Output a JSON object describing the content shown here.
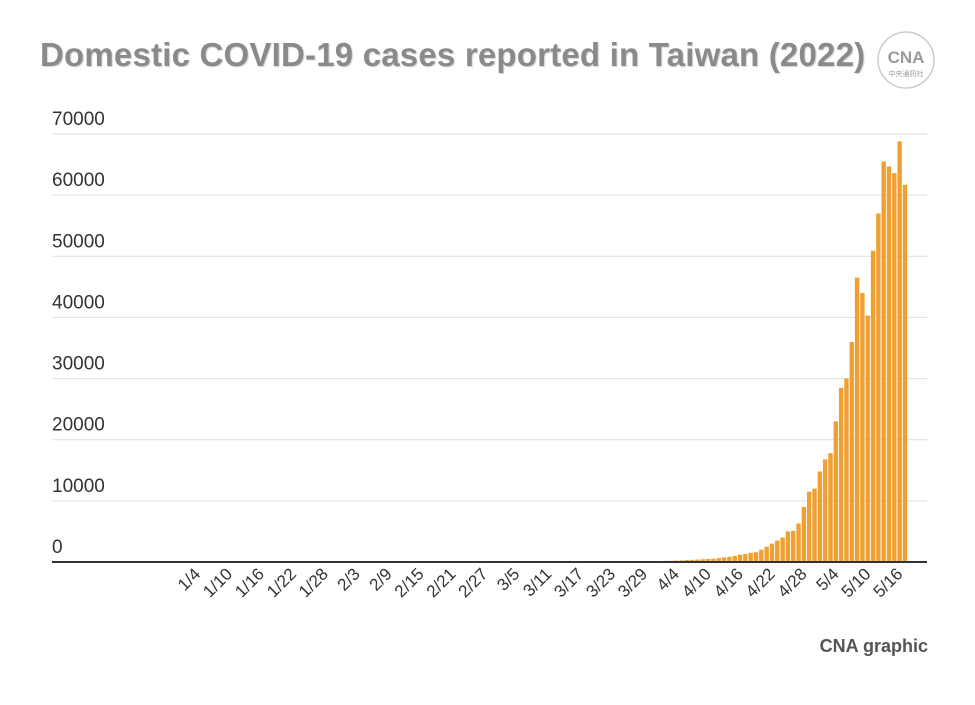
{
  "header": {
    "title": "Domestic COVID-19 cases reported in Taiwan (2022)",
    "logo_text": "CNA",
    "logo_subtext": "中央通訊社"
  },
  "footer": {
    "credit": "CNA graphic"
  },
  "colors": {
    "bar": "#f0a030",
    "grid": "#dddddd",
    "axis": "#333333",
    "title": "#8a8a8a"
  },
  "chart_data": {
    "type": "bar",
    "title": "Domestic COVID-19 cases reported in Taiwan (2022)",
    "xlabel": "",
    "ylabel": "",
    "ylim": [
      0,
      70000
    ],
    "yticks": [
      0,
      10000,
      20000,
      30000,
      40000,
      50000,
      60000,
      70000
    ],
    "xtick_labels": [
      "1/4",
      "1/10",
      "1/16",
      "1/22",
      "1/28",
      "2/3",
      "2/9",
      "2/15",
      "2/21",
      "2/27",
      "3/5",
      "3/11",
      "3/17",
      "3/23",
      "3/29",
      "4/4",
      "4/10",
      "4/16",
      "4/22",
      "4/28",
      "5/4",
      "5/10",
      "5/16"
    ],
    "grid": true,
    "legend": "none",
    "bars_start": "4/1",
    "categories": [
      "4/1",
      "4/2",
      "4/3",
      "4/4",
      "4/5",
      "4/6",
      "4/7",
      "4/8",
      "4/9",
      "4/10",
      "4/11",
      "4/12",
      "4/13",
      "4/14",
      "4/15",
      "4/16",
      "4/17",
      "4/18",
      "4/19",
      "4/20",
      "4/21",
      "4/22",
      "4/23",
      "4/24",
      "4/25",
      "4/26",
      "4/27",
      "4/28",
      "4/29",
      "4/30",
      "5/1",
      "5/2",
      "5/3",
      "5/4",
      "5/5",
      "5/6",
      "5/7",
      "5/8",
      "5/9",
      "5/10",
      "5/11",
      "5/12",
      "5/13",
      "5/14",
      "5/15",
      "5/16",
      "5/17"
    ],
    "values": [
      150,
      180,
      200,
      230,
      250,
      320,
      350,
      400,
      450,
      500,
      550,
      650,
      750,
      850,
      1000,
      1200,
      1300,
      1500,
      1600,
      2000,
      2500,
      3000,
      3500,
      4000,
      5000,
      5100,
      6300,
      9000,
      11500,
      12000,
      14800,
      16800,
      17800,
      23000,
      28500,
      30000,
      36000,
      46500,
      44000,
      40300,
      50900,
      57000,
      65500,
      64700,
      63600,
      68800,
      61700
    ]
  }
}
